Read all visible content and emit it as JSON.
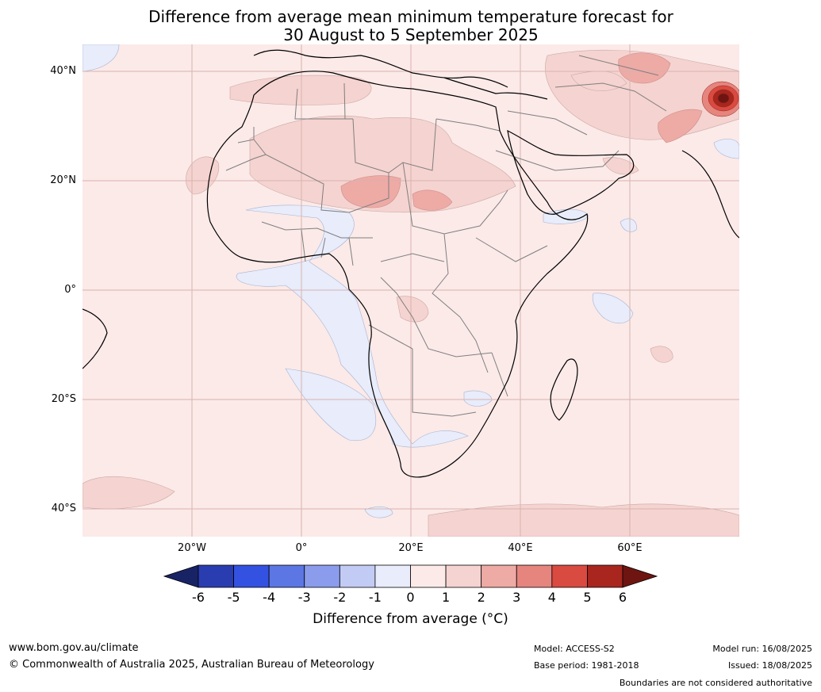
{
  "title": {
    "line1": "Difference from average mean minimum temperature forecast for",
    "line2": "30 August to 5 September 2025"
  },
  "map": {
    "lat_labels": [
      "40°N",
      "20°N",
      "0°",
      "20°S",
      "40°S"
    ],
    "lon_labels": [
      "20°W",
      "0°",
      "20°E",
      "40°E",
      "60°E"
    ],
    "extent": {
      "lon_min": -40,
      "lon_max": 80,
      "lat_min": -45,
      "lat_max": 45
    }
  },
  "colorbar": {
    "ticks": [
      "-6",
      "-5",
      "-4",
      "-3",
      "-2",
      "-1",
      "0",
      "1",
      "2",
      "3",
      "4",
      "5",
      "6"
    ],
    "colors": [
      "#182366",
      "#2a3db0",
      "#3352e1",
      "#5c76e4",
      "#8b9cec",
      "#c2cbf3",
      "#e8ecfb",
      "#fbeae8",
      "#f5d3d0",
      "#eeaaa5",
      "#e6847e",
      "#d94a40",
      "#a8261e",
      "#6e1512"
    ],
    "label": "Difference from average (°C)"
  },
  "footer": {
    "url": "www.bom.gov.au/climate",
    "copyright": "© Commonwealth of Australia 2025, Australian Bureau of Meteorology",
    "model": "Model: ACCESS-S2",
    "base_period": "Base period: 1981-2018",
    "model_run": "Model run: 16/08/2025",
    "issued": "Issued: 18/08/2025",
    "disclaimer": "Boundaries are not considered authoritative"
  }
}
